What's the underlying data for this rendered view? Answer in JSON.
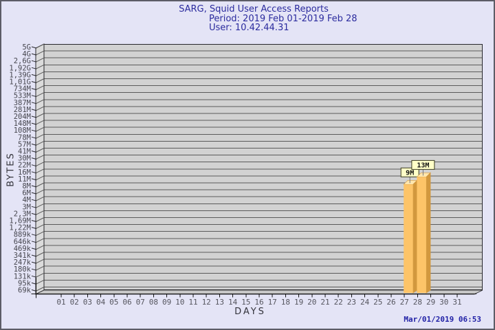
{
  "header": {
    "title": "SARG, Squid User Access Reports",
    "period": "Period: 2019 Feb 01-2019 Feb 28",
    "user": "User: 10.42.44.31"
  },
  "footer": {
    "generated": "Mar/01/2019 06:53"
  },
  "chart_data": {
    "type": "bar",
    "title": "SARG, Squid User Access Reports",
    "subtitle": "Period: 2019 Feb 01-2019 Feb 28",
    "user": "User: 10.42.44.31",
    "xlabel": "DAYS",
    "ylabel": "BYTES",
    "y_scale": "log",
    "style": "3d-bars",
    "y_tick_labels": [
      "5G",
      "4G",
      "2,6G",
      "1,92G",
      "1,39G",
      "1,01G",
      "734M",
      "533M",
      "387M",
      "281M",
      "204M",
      "148M",
      "108M",
      "78M",
      "57M",
      "41M",
      "30M",
      "22M",
      "16M",
      "11M",
      "8M",
      "6M",
      "4M",
      "3M",
      "2,3M",
      "1,69M",
      "1,22M",
      "889k",
      "646k",
      "469k",
      "341k",
      "247k",
      "180k",
      "131k",
      "95k",
      "69k"
    ],
    "x_tick_labels": [
      "01",
      "02",
      "03",
      "04",
      "05",
      "06",
      "07",
      "08",
      "09",
      "10",
      "11",
      "12",
      "13",
      "14",
      "15",
      "16",
      "17",
      "18",
      "19",
      "20",
      "21",
      "22",
      "23",
      "24",
      "25",
      "26",
      "27",
      "28",
      "29",
      "30",
      "31"
    ],
    "bars": [
      {
        "x": "27",
        "label": "9M",
        "bytes": 9000000
      },
      {
        "x": "28",
        "label": "13M",
        "bytes": 13000000
      }
    ]
  },
  "colors": {
    "background": "#e4e4f6",
    "frame_border": "#5c5c66",
    "title_text": "#2b2b9e",
    "timestamp_text": "#2121a6",
    "wall": "#d2d2d2",
    "side_wall": "#dbdbdb",
    "floor": "#c6c6c6",
    "gridline": "#5a5a5a",
    "edge": "#26262a",
    "axis_line": "#111111",
    "bar_front": "#fdc468",
    "bar_side": "#d2983e",
    "bar_top": "#fee6ae",
    "value_box_bg": "#ffffc8",
    "value_box_border": "#3a3a20",
    "value_connector": "#77777c"
  }
}
